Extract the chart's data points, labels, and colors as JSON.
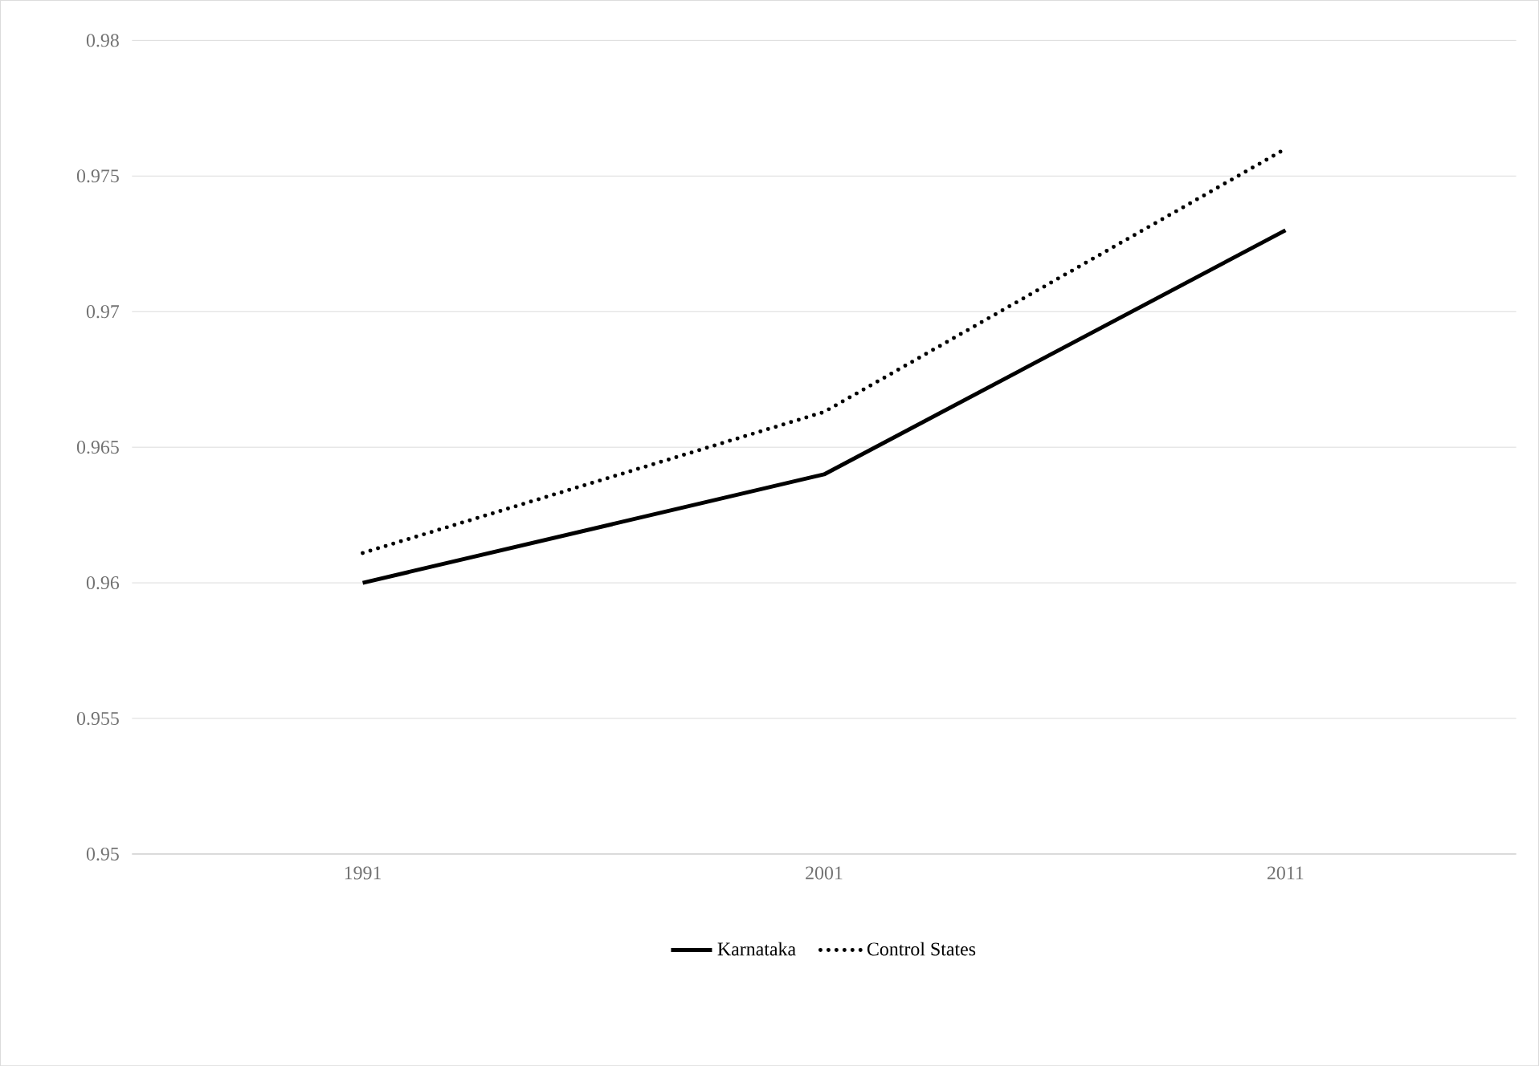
{
  "chart_data": {
    "type": "line",
    "categories": [
      "1991",
      "2001",
      "2011"
    ],
    "series": [
      {
        "name": "Karnataka",
        "color": "#000000",
        "values": [
          0.96,
          0.964,
          0.973
        ],
        "line_style": "solid"
      },
      {
        "name": "Control States",
        "color": "#000000",
        "values": [
          0.9611,
          0.9663,
          0.976
        ],
        "line_style": "dotted"
      }
    ],
    "ylim": [
      0.95,
      0.98
    ],
    "yticks": [
      0.95,
      0.955,
      0.96,
      0.965,
      0.97,
      0.975,
      0.98
    ],
    "grid": "y",
    "legend": "bottom",
    "marker": "none"
  }
}
